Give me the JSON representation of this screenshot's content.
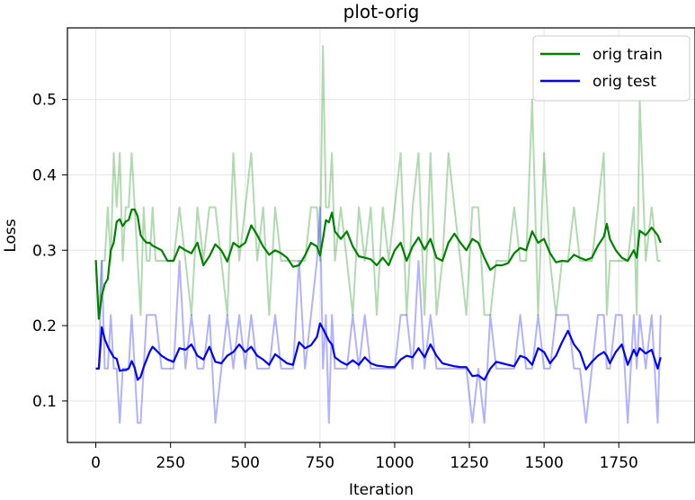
{
  "chart_data": {
    "type": "line",
    "title": "plot-orig",
    "xlabel": "Iteration",
    "ylabel": "Loss",
    "xlim": [
      -95,
      2005
    ],
    "ylim": [
      0.045,
      0.595
    ],
    "xticks": [
      0,
      250,
      500,
      750,
      1000,
      1250,
      1500,
      1750
    ],
    "xtick_labels": [
      "0",
      "250",
      "500",
      "750",
      "1000",
      "1250",
      "1500",
      "1750"
    ],
    "yticks": [
      0.1,
      0.2,
      0.3,
      0.4,
      0.5
    ],
    "ytick_labels": [
      "0.1",
      "0.2",
      "0.3",
      "0.4",
      "0.5"
    ],
    "grid": true,
    "legend_position": "top-right",
    "series": [
      {
        "name": "orig train",
        "color": "#008000",
        "x": [
          0,
          10,
          20,
          30,
          40,
          50,
          60,
          70,
          80,
          90,
          100,
          110,
          120,
          130,
          140,
          150,
          160,
          170,
          180,
          190,
          200,
          220,
          240,
          260,
          280,
          300,
          320,
          340,
          360,
          380,
          400,
          420,
          440,
          460,
          480,
          500,
          520,
          540,
          560,
          580,
          600,
          620,
          640,
          660,
          680,
          700,
          720,
          740,
          750,
          760,
          770,
          780,
          790,
          800,
          820,
          840,
          860,
          880,
          900,
          920,
          940,
          960,
          980,
          1000,
          1020,
          1040,
          1060,
          1080,
          1100,
          1120,
          1140,
          1160,
          1180,
          1200,
          1220,
          1240,
          1260,
          1280,
          1300,
          1320,
          1340,
          1360,
          1380,
          1400,
          1420,
          1440,
          1460,
          1480,
          1500,
          1520,
          1540,
          1560,
          1580,
          1600,
          1620,
          1640,
          1660,
          1680,
          1700,
          1710,
          1720,
          1740,
          1760,
          1780,
          1800,
          1810,
          1820,
          1840,
          1860,
          1880,
          1890
        ],
        "values": [
          0.287,
          0.209,
          0.24,
          0.255,
          0.262,
          0.3,
          0.31,
          0.338,
          0.341,
          0.332,
          0.338,
          0.34,
          0.354,
          0.354,
          0.345,
          0.32,
          0.314,
          0.31,
          0.31,
          0.306,
          0.304,
          0.3,
          0.286,
          0.286,
          0.305,
          0.3,
          0.296,
          0.31,
          0.28,
          0.292,
          0.308,
          0.3,
          0.285,
          0.31,
          0.304,
          0.31,
          0.333,
          0.32,
          0.305,
          0.294,
          0.3,
          0.296,
          0.29,
          0.278,
          0.28,
          0.293,
          0.31,
          0.305,
          0.293,
          0.315,
          0.34,
          0.337,
          0.35,
          0.325,
          0.315,
          0.325,
          0.305,
          0.292,
          0.29,
          0.288,
          0.28,
          0.29,
          0.28,
          0.3,
          0.31,
          0.286,
          0.305,
          0.317,
          0.301,
          0.315,
          0.29,
          0.286,
          0.31,
          0.322,
          0.31,
          0.3,
          0.315,
          0.31,
          0.29,
          0.274,
          0.28,
          0.28,
          0.283,
          0.296,
          0.303,
          0.3,
          0.325,
          0.31,
          0.315,
          0.296,
          0.284,
          0.286,
          0.285,
          0.294,
          0.29,
          0.287,
          0.29,
          0.306,
          0.318,
          0.335,
          0.315,
          0.3,
          0.29,
          0.286,
          0.3,
          0.29,
          0.326,
          0.32,
          0.33,
          0.32,
          0.31
        ],
        "raw_values": [
          0.286,
          0.214,
          0.286,
          0.286,
          0.357,
          0.286,
          0.429,
          0.357,
          0.429,
          0.286,
          0.357,
          0.357,
          0.429,
          0.357,
          0.286,
          0.214,
          0.357,
          0.286,
          0.286,
          0.357,
          0.286,
          0.286,
          0.286,
          0.286,
          0.357,
          0.286,
          0.214,
          0.357,
          0.286,
          0.357,
          0.357,
          0.286,
          0.214,
          0.429,
          0.286,
          0.357,
          0.429,
          0.286,
          0.357,
          0.214,
          0.357,
          0.286,
          0.286,
          0.286,
          0.286,
          0.286,
          0.357,
          0.357,
          0.286,
          0.571,
          0.357,
          0.357,
          0.429,
          0.286,
          0.357,
          0.286,
          0.214,
          0.357,
          0.286,
          0.357,
          0.214,
          0.357,
          0.286,
          0.357,
          0.429,
          0.214,
          0.357,
          0.429,
          0.214,
          0.429,
          0.214,
          0.286,
          0.429,
          0.357,
          0.286,
          0.214,
          0.357,
          0.357,
          0.214,
          0.214,
          0.286,
          0.286,
          0.286,
          0.357,
          0.286,
          0.286,
          0.5,
          0.214,
          0.429,
          0.286,
          0.214,
          0.286,
          0.286,
          0.357,
          0.286,
          0.286,
          0.286,
          0.357,
          0.429,
          0.214,
          0.286,
          0.286,
          0.286,
          0.286,
          0.357,
          0.214,
          0.5,
          0.286,
          0.357,
          0.286,
          0.286
        ]
      },
      {
        "name": "orig test",
        "color": "#0000ff",
        "x": [
          0,
          10,
          20,
          30,
          40,
          50,
          60,
          70,
          80,
          90,
          100,
          110,
          120,
          130,
          140,
          150,
          160,
          170,
          180,
          190,
          200,
          220,
          240,
          260,
          280,
          300,
          320,
          340,
          360,
          380,
          400,
          420,
          440,
          460,
          480,
          500,
          520,
          540,
          560,
          580,
          600,
          620,
          640,
          660,
          680,
          700,
          720,
          740,
          750,
          760,
          770,
          780,
          790,
          800,
          820,
          840,
          860,
          880,
          900,
          920,
          940,
          960,
          980,
          1000,
          1020,
          1040,
          1060,
          1080,
          1100,
          1120,
          1140,
          1160,
          1180,
          1200,
          1220,
          1240,
          1260,
          1280,
          1300,
          1320,
          1340,
          1360,
          1380,
          1400,
          1420,
          1440,
          1460,
          1480,
          1500,
          1520,
          1540,
          1560,
          1580,
          1600,
          1620,
          1640,
          1660,
          1680,
          1700,
          1710,
          1720,
          1740,
          1760,
          1780,
          1800,
          1810,
          1820,
          1840,
          1860,
          1880,
          1890
        ],
        "values": [
          0.143,
          0.143,
          0.198,
          0.182,
          0.172,
          0.165,
          0.158,
          0.156,
          0.14,
          0.141,
          0.141,
          0.143,
          0.153,
          0.144,
          0.128,
          0.132,
          0.145,
          0.155,
          0.165,
          0.172,
          0.168,
          0.16,
          0.155,
          0.152,
          0.17,
          0.168,
          0.175,
          0.16,
          0.155,
          0.172,
          0.152,
          0.15,
          0.16,
          0.165,
          0.175,
          0.165,
          0.172,
          0.16,
          0.155,
          0.148,
          0.162,
          0.156,
          0.15,
          0.148,
          0.178,
          0.17,
          0.174,
          0.185,
          0.203,
          0.196,
          0.188,
          0.18,
          0.175,
          0.158,
          0.152,
          0.148,
          0.154,
          0.148,
          0.158,
          0.15,
          0.147,
          0.146,
          0.145,
          0.145,
          0.155,
          0.16,
          0.158,
          0.17,
          0.158,
          0.175,
          0.16,
          0.15,
          0.148,
          0.146,
          0.145,
          0.145,
          0.133,
          0.134,
          0.128,
          0.143,
          0.152,
          0.15,
          0.148,
          0.146,
          0.16,
          0.157,
          0.148,
          0.17,
          0.165,
          0.15,
          0.16,
          0.178,
          0.193,
          0.175,
          0.165,
          0.142,
          0.152,
          0.16,
          0.165,
          0.16,
          0.15,
          0.165,
          0.175,
          0.148,
          0.168,
          0.16,
          0.17,
          0.163,
          0.168,
          0.143,
          0.158
        ],
        "raw_values": [
          0.143,
          0.143,
          0.286,
          0.143,
          0.143,
          0.214,
          0.143,
          0.143,
          0.071,
          0.143,
          0.143,
          0.143,
          0.214,
          0.143,
          0.071,
          0.071,
          0.143,
          0.214,
          0.214,
          0.214,
          0.214,
          0.143,
          0.143,
          0.143,
          0.286,
          0.143,
          0.214,
          0.143,
          0.143,
          0.214,
          0.071,
          0.143,
          0.214,
          0.143,
          0.214,
          0.143,
          0.214,
          0.143,
          0.143,
          0.143,
          0.214,
          0.143,
          0.143,
          0.143,
          0.286,
          0.143,
          0.214,
          0.286,
          0.357,
          0.143,
          0.214,
          0.071,
          0.214,
          0.143,
          0.143,
          0.143,
          0.214,
          0.143,
          0.214,
          0.143,
          0.143,
          0.143,
          0.143,
          0.143,
          0.214,
          0.214,
          0.143,
          0.286,
          0.143,
          0.214,
          0.143,
          0.143,
          0.143,
          0.143,
          0.143,
          0.143,
          0.071,
          0.143,
          0.071,
          0.214,
          0.143,
          0.143,
          0.143,
          0.143,
          0.214,
          0.143,
          0.143,
          0.214,
          0.143,
          0.143,
          0.214,
          0.214,
          0.214,
          0.143,
          0.143,
          0.071,
          0.143,
          0.214,
          0.214,
          0.143,
          0.143,
          0.214,
          0.214,
          0.071,
          0.214,
          0.143,
          0.214,
          0.143,
          0.214,
          0.071,
          0.214
        ]
      }
    ]
  }
}
